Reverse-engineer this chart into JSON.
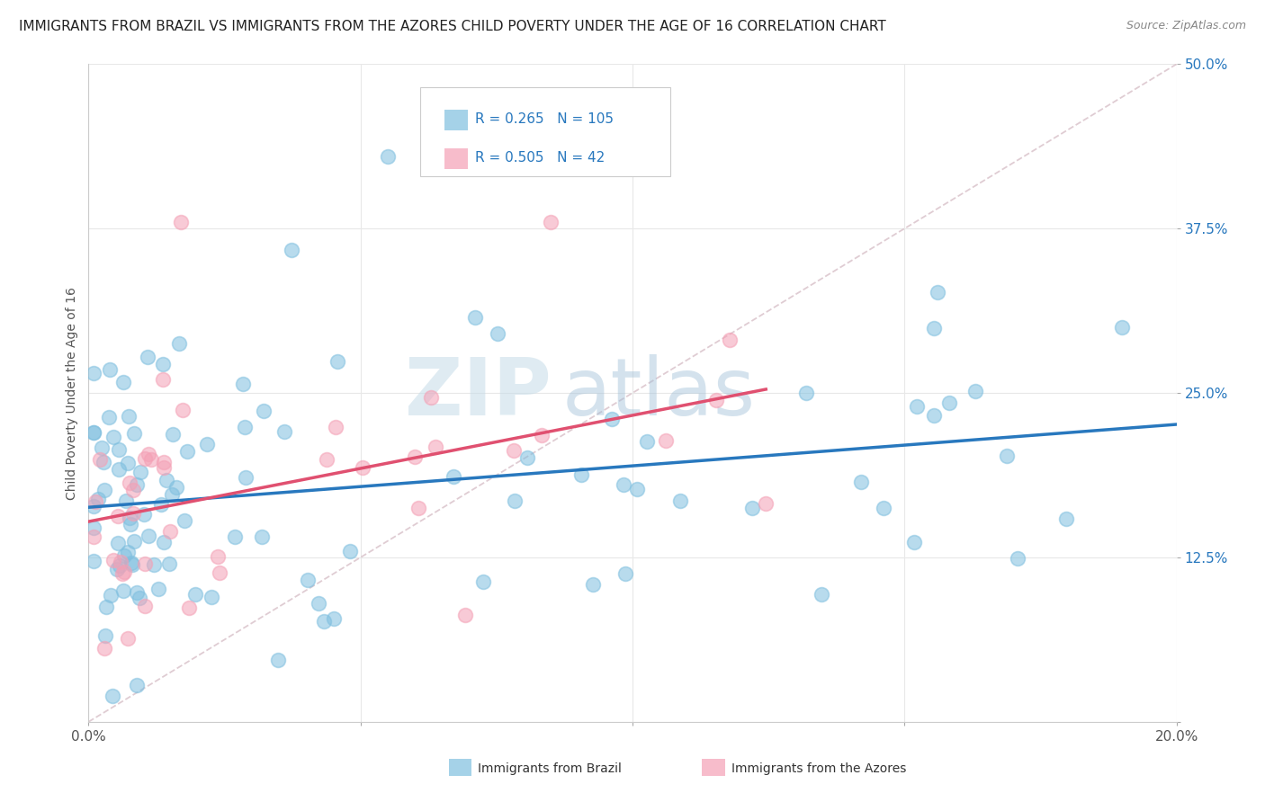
{
  "title": "IMMIGRANTS FROM BRAZIL VS IMMIGRANTS FROM THE AZORES CHILD POVERTY UNDER THE AGE OF 16 CORRELATION CHART",
  "source": "Source: ZipAtlas.com",
  "ylabel": "Child Poverty Under the Age of 16",
  "xmin": 0.0,
  "xmax": 0.2,
  "ymin": 0.0,
  "ymax": 0.5,
  "xticks": [
    0.0,
    0.05,
    0.1,
    0.15,
    0.2
  ],
  "xticklabels": [
    "0.0%",
    "",
    "",
    "",
    "20.0%"
  ],
  "yticks": [
    0.0,
    0.125,
    0.25,
    0.375,
    0.5
  ],
  "yticklabels": [
    "",
    "12.5%",
    "25.0%",
    "37.5%",
    "50.0%"
  ],
  "brazil_R": 0.265,
  "brazil_N": 105,
  "azores_R": 0.505,
  "azores_N": 42,
  "brazil_color": "#7fbfdf",
  "azores_color": "#f4a0b5",
  "brazil_edge_color": "#7fbfdf",
  "azores_edge_color": "#f4a0b5",
  "brazil_line_color": "#2878be",
  "azores_line_color": "#e05070",
  "ref_line_color": "#d8c0c8",
  "legend_labels": [
    "Immigrants from Brazil",
    "Immigrants from the Azores"
  ],
  "background_color": "#ffffff",
  "grid_color": "#e8e8e8",
  "title_color": "#222222",
  "ytick_color": "#2878be",
  "xtick_color": "#555555",
  "watermark_zip_color": "#b8d4e8",
  "watermark_atlas_color": "#90b8d8",
  "title_fontsize": 11,
  "label_fontsize": 10,
  "tick_fontsize": 11,
  "legend_fontsize": 10,
  "scatter_size": 130,
  "scatter_alpha": 0.55,
  "scatter_lw": 1.5
}
